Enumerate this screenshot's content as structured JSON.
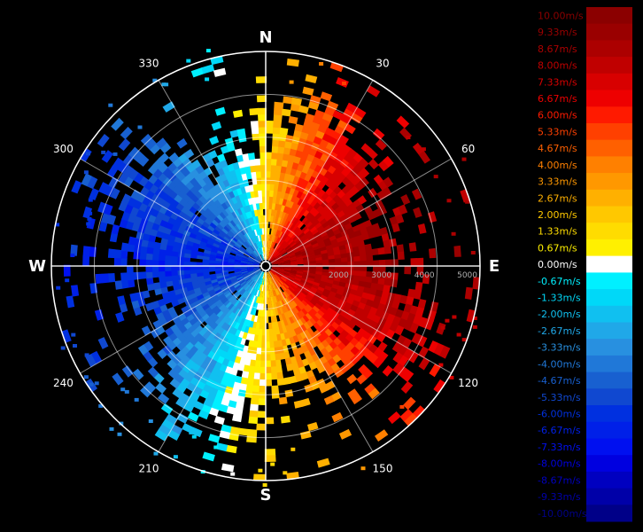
{
  "chart_data": {
    "type": "heatmap",
    "subtype": "polar radar radial-velocity display (PPI)",
    "cardinals": [
      "N",
      "E",
      "S",
      "W"
    ],
    "bearing_ticks": [
      "30",
      "60",
      "120",
      "150",
      "210",
      "240",
      "300",
      "330"
    ],
    "range_ticks": [
      2000,
      3000,
      4000,
      5000
    ],
    "range_tick_labels": [
      "2000",
      "3000",
      "4000",
      "5000"
    ],
    "range_max": 5000,
    "grid": true,
    "legend_placement": "right",
    "colorbar": {
      "unit": "m/s",
      "min": -10.0,
      "max": 10.0,
      "entries": [
        {
          "label": "10.00m/s",
          "value": 10.0,
          "color": "#8b0000"
        },
        {
          "label": "9.33m/s",
          "value": 9.33,
          "color": "#9a0000"
        },
        {
          "label": "8.67m/s",
          "value": 8.67,
          "color": "#ac0000"
        },
        {
          "label": "8.00m/s",
          "value": 8.0,
          "color": "#c00000"
        },
        {
          "label": "7.33m/s",
          "value": 7.33,
          "color": "#d80000"
        },
        {
          "label": "6.67m/s",
          "value": 6.67,
          "color": "#ee0000"
        },
        {
          "label": "6.00m/s",
          "value": 6.0,
          "color": "#ff1a00"
        },
        {
          "label": "5.33m/s",
          "value": 5.33,
          "color": "#ff4000"
        },
        {
          "label": "4.67m/s",
          "value": 4.67,
          "color": "#ff6000"
        },
        {
          "label": "4.00m/s",
          "value": 4.0,
          "color": "#ff8000"
        },
        {
          "label": "3.33m/s",
          "value": 3.33,
          "color": "#ff9800"
        },
        {
          "label": "2.67m/s",
          "value": 2.67,
          "color": "#ffb000"
        },
        {
          "label": "2.00m/s",
          "value": 2.0,
          "color": "#ffc800"
        },
        {
          "label": "1.33m/s",
          "value": 1.33,
          "color": "#ffdc00"
        },
        {
          "label": "0.67m/s",
          "value": 0.67,
          "color": "#fff000"
        },
        {
          "label": "0.00m/s",
          "value": 0.0,
          "color": "#ffffff"
        },
        {
          "label": "-0.67m/s",
          "value": -0.67,
          "color": "#00f0ff"
        },
        {
          "label": "-1.33m/s",
          "value": -1.33,
          "color": "#00d8f8"
        },
        {
          "label": "-2.00m/s",
          "value": -2.0,
          "color": "#10c0f0"
        },
        {
          "label": "-2.67m/s",
          "value": -2.67,
          "color": "#20a8e8"
        },
        {
          "label": "-3.33m/s",
          "value": -3.33,
          "color": "#2890e0"
        },
        {
          "label": "-4.00m/s",
          "value": -4.0,
          "color": "#2078d8"
        },
        {
          "label": "-4.67m/s",
          "value": -4.67,
          "color": "#1860d0"
        },
        {
          "label": "-5.33m/s",
          "value": -5.33,
          "color": "#1048d0"
        },
        {
          "label": "-6.00m/s",
          "value": -6.0,
          "color": "#0030e0"
        },
        {
          "label": "-6.67m/s",
          "value": -6.67,
          "color": "#0020e8"
        },
        {
          "label": "-7.33m/s",
          "value": -7.33,
          "color": "#0010f0"
        },
        {
          "label": "-8.00m/s",
          "value": -8.0,
          "color": "#0000e0"
        },
        {
          "label": "-8.67m/s",
          "value": -8.67,
          "color": "#0000c0"
        },
        {
          "label": "-9.33m/s",
          "value": -9.33,
          "color": "#0000a8"
        },
        {
          "label": "-10.00m/s",
          "value": -10.0,
          "color": "#000088"
        }
      ]
    },
    "series": [
      {
        "azimuth_deg": 0,
        "velocity_ms": 1.8
      },
      {
        "azimuth_deg": 30,
        "velocity_ms": 6.5
      },
      {
        "azimuth_deg": 60,
        "velocity_ms": 8.5
      },
      {
        "azimuth_deg": 90,
        "velocity_ms": 9.0
      },
      {
        "azimuth_deg": 120,
        "velocity_ms": 7.5
      },
      {
        "azimuth_deg": 150,
        "velocity_ms": 4.0
      },
      {
        "azimuth_deg": 180,
        "velocity_ms": 1.5
      },
      {
        "azimuth_deg": 210,
        "velocity_ms": -2.5
      },
      {
        "azimuth_deg": 240,
        "velocity_ms": -5.0
      },
      {
        "azimuth_deg": 270,
        "velocity_ms": -6.5
      },
      {
        "azimuth_deg": 300,
        "velocity_ms": -5.5
      },
      {
        "azimuth_deg": 330,
        "velocity_ms": -3.0
      }
    ]
  }
}
